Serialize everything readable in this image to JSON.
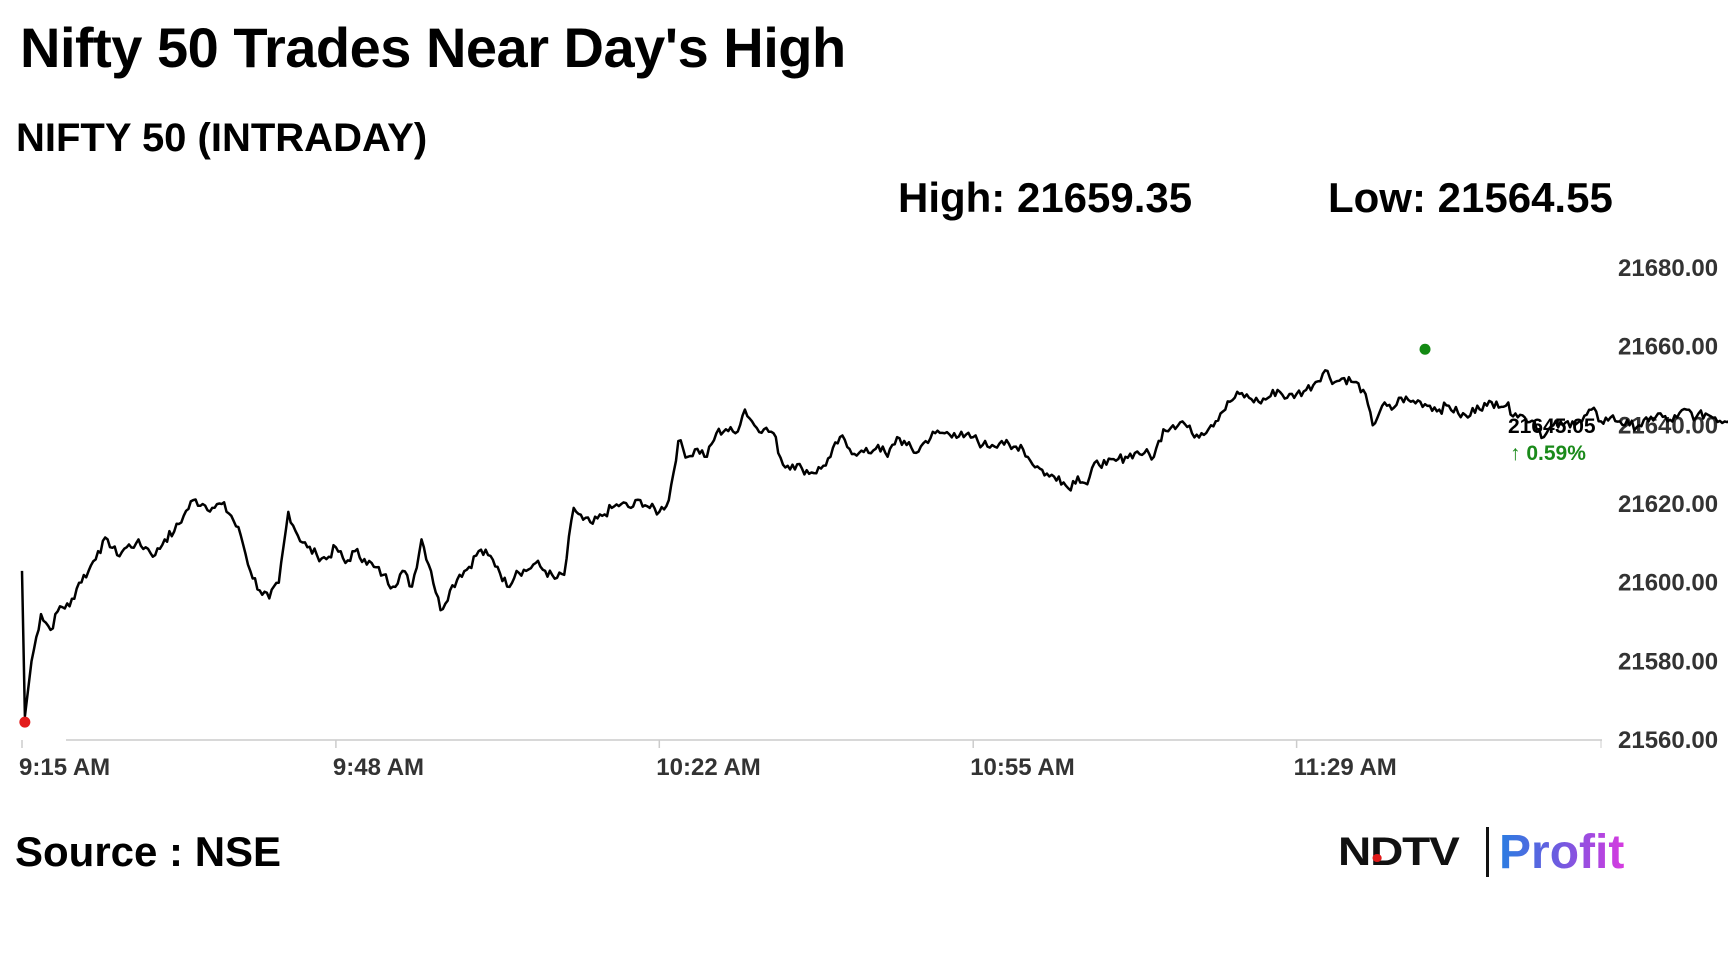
{
  "headline": "Nifty 50 Trades Near Day's High",
  "subtitle": "NIFTY 50 (INTRADAY)",
  "stats": {
    "high": "High: 21659.35",
    "low": "Low: 21564.55"
  },
  "source": "Source : NSE",
  "brand": {
    "ndtv": "NDTV",
    "profit": "Profit"
  },
  "colors": {
    "line": "#000000",
    "low_marker": "#e31b1b",
    "high_marker": "#138a13",
    "last_marker": "#1a1aa8",
    "positive": "#1a8a1a",
    "axis": "#cccccc"
  },
  "chart_data": {
    "type": "line",
    "x_unit": "time",
    "x_ticks": [
      "9:15 AM",
      "9:48 AM",
      "10:22 AM",
      "10:55 AM",
      "11:29 AM"
    ],
    "x_tick_minutes": [
      555,
      588,
      622,
      655,
      689
    ],
    "xlim_minutes": [
      555,
      721
    ],
    "y_ticks": [
      "21560.00",
      "21580.00",
      "21600.00",
      "21620.00",
      "21640.00",
      "21660.00",
      "21680.00"
    ],
    "ylim": [
      21560,
      21680
    ],
    "last_price": "21645.05",
    "last_change": "↑ 0.59%",
    "series": [
      {
        "values": [
          [
            555.0,
            21603
          ],
          [
            555.3,
            21566
          ],
          [
            556.0,
            21580
          ],
          [
            557.0,
            21592
          ],
          [
            558.0,
            21588
          ],
          [
            559.0,
            21594
          ],
          [
            560.0,
            21594
          ],
          [
            561.0,
            21600
          ],
          [
            562.0,
            21603
          ],
          [
            563.0,
            21608
          ],
          [
            564.0,
            21611
          ],
          [
            565.0,
            21607
          ],
          [
            566.0,
            21609
          ],
          [
            567.0,
            21610
          ],
          [
            568.0,
            21609
          ],
          [
            569.0,
            21607
          ],
          [
            570.0,
            21611
          ],
          [
            571.0,
            21613
          ],
          [
            572.0,
            21617
          ],
          [
            573.0,
            21621
          ],
          [
            574.0,
            21620
          ],
          [
            575.0,
            21619
          ],
          [
            576.0,
            21620
          ],
          [
            577.0,
            21617
          ],
          [
            578.0,
            21612
          ],
          [
            579.0,
            21603
          ],
          [
            580.0,
            21598
          ],
          [
            581.0,
            21596
          ],
          [
            582.0,
            21600
          ],
          [
            583.0,
            21618
          ],
          [
            584.0,
            21612
          ],
          [
            585.0,
            21609
          ],
          [
            586.0,
            21607
          ],
          [
            587.0,
            21606
          ],
          [
            588.0,
            21609
          ],
          [
            589.0,
            21605
          ],
          [
            590.0,
            21608
          ],
          [
            591.0,
            21606
          ],
          [
            592.0,
            21604
          ],
          [
            593.0,
            21602
          ],
          [
            594.0,
            21599
          ],
          [
            595.0,
            21603
          ],
          [
            596.0,
            21599
          ],
          [
            597.0,
            21611
          ],
          [
            598.0,
            21603
          ],
          [
            599.0,
            21593
          ],
          [
            600.0,
            21598
          ],
          [
            601.0,
            21602
          ],
          [
            602.0,
            21604
          ],
          [
            603.0,
            21608
          ],
          [
            604.0,
            21607
          ],
          [
            605.0,
            21604
          ],
          [
            606.0,
            21599
          ],
          [
            607.0,
            21603
          ],
          [
            608.0,
            21603
          ],
          [
            609.0,
            21605
          ],
          [
            610.0,
            21603
          ],
          [
            611.0,
            21601
          ],
          [
            612.0,
            21602
          ],
          [
            613.0,
            21619
          ],
          [
            614.0,
            21616
          ],
          [
            615.0,
            21615
          ],
          [
            616.0,
            21617
          ],
          [
            617.0,
            21619
          ],
          [
            618.0,
            21620
          ],
          [
            619.0,
            21619
          ],
          [
            620.0,
            21621
          ],
          [
            621.0,
            21619
          ],
          [
            622.0,
            21618
          ],
          [
            623.0,
            21621
          ],
          [
            624.0,
            21636
          ],
          [
            625.0,
            21632
          ],
          [
            626.0,
            21634
          ],
          [
            627.0,
            21632
          ],
          [
            628.0,
            21638
          ],
          [
            629.0,
            21639
          ],
          [
            630.0,
            21638
          ],
          [
            631.0,
            21644
          ],
          [
            632.0,
            21640
          ],
          [
            633.0,
            21639
          ],
          [
            634.0,
            21638
          ],
          [
            635.0,
            21630
          ],
          [
            636.0,
            21630
          ],
          [
            637.0,
            21629
          ],
          [
            638.0,
            21628
          ],
          [
            639.0,
            21629
          ],
          [
            640.0,
            21632
          ],
          [
            641.0,
            21637
          ],
          [
            642.0,
            21634
          ],
          [
            643.0,
            21633
          ],
          [
            644.0,
            21633
          ],
          [
            645.0,
            21635
          ],
          [
            646.0,
            21632
          ],
          [
            647.0,
            21637
          ],
          [
            648.0,
            21635
          ],
          [
            649.0,
            21633
          ],
          [
            650.0,
            21636
          ],
          [
            651.0,
            21638
          ],
          [
            652.0,
            21638
          ],
          [
            653.0,
            21638
          ],
          [
            654.0,
            21637
          ],
          [
            655.0,
            21637
          ],
          [
            656.0,
            21635
          ],
          [
            657.0,
            21635
          ],
          [
            658.0,
            21636
          ],
          [
            659.0,
            21634
          ],
          [
            660.0,
            21635
          ],
          [
            661.0,
            21631
          ],
          [
            662.0,
            21629
          ],
          [
            663.0,
            21627
          ],
          [
            664.0,
            21627
          ],
          [
            665.0,
            21624
          ],
          [
            666.0,
            21627
          ],
          [
            667.0,
            21625
          ],
          [
            668.0,
            21631
          ],
          [
            669.0,
            21630
          ],
          [
            670.0,
            21631
          ],
          [
            671.0,
            21632
          ],
          [
            672.0,
            21633
          ],
          [
            673.0,
            21633
          ],
          [
            674.0,
            21632
          ],
          [
            675.0,
            21639
          ],
          [
            676.0,
            21640
          ],
          [
            677.0,
            21641
          ],
          [
            678.0,
            21638
          ],
          [
            679.0,
            21638
          ],
          [
            680.0,
            21640
          ],
          [
            681.0,
            21643
          ],
          [
            682.0,
            21646
          ],
          [
            683.0,
            21648
          ],
          [
            684.0,
            21647
          ],
          [
            685.0,
            21646
          ],
          [
            686.0,
            21647
          ],
          [
            687.0,
            21649
          ],
          [
            688.0,
            21647
          ],
          [
            689.0,
            21648
          ],
          [
            690.0,
            21649
          ],
          [
            691.0,
            21651
          ],
          [
            692.0,
            21654
          ],
          [
            693.0,
            21651
          ],
          [
            694.0,
            21652
          ],
          [
            695.0,
            21651
          ],
          [
            696.0,
            21649
          ],
          [
            697.0,
            21640
          ],
          [
            698.0,
            21645
          ],
          [
            699.0,
            21644
          ],
          [
            700.0,
            21647
          ],
          [
            701.0,
            21646
          ],
          [
            702.0,
            21646
          ],
          [
            703.0,
            21645
          ],
          [
            704.0,
            21644
          ],
          [
            705.0,
            21645
          ],
          [
            706.0,
            21643
          ],
          [
            707.0,
            21642
          ],
          [
            708.0,
            21645
          ],
          [
            709.0,
            21645
          ],
          [
            710.0,
            21646
          ],
          [
            711.0,
            21645
          ],
          [
            712.0,
            21643
          ],
          [
            713.0,
            21642
          ],
          [
            714.0,
            21641
          ],
          [
            715.0,
            21637
          ],
          [
            716.0,
            21640
          ],
          [
            717.0,
            21640
          ],
          [
            718.0,
            21641
          ],
          [
            719.0,
            21641
          ],
          [
            720.0,
            21644
          ],
          [
            721.0,
            21641
          ],
          [
            722.0,
            21642
          ],
          [
            723.0,
            21641
          ],
          [
            724.0,
            21640
          ],
          [
            725.0,
            21640
          ],
          [
            726.0,
            21641
          ],
          [
            727.0,
            21643
          ],
          [
            728.0,
            21641
          ],
          [
            729.0,
            21642
          ],
          [
            730.0,
            21644
          ],
          [
            731.0,
            21642
          ],
          [
            732.0,
            21643
          ],
          [
            733.0,
            21642
          ],
          [
            734.0,
            21641
          ],
          [
            735.0,
            21643
          ],
          [
            736.0,
            21644
          ]
        ]
      }
    ],
    "markers": {
      "low": [
        555.3,
        21564.55
      ],
      "high": [
        702.5,
        21659.35
      ],
      "last": [
        739.5,
        21645.05
      ]
    }
  }
}
